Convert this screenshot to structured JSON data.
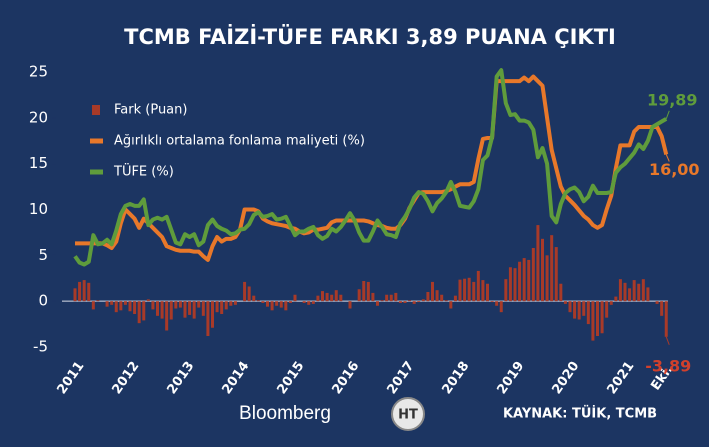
{
  "chart_data": {
    "type": "combo",
    "title": "TCMB FAİZİ-TÜFE FARKI 3,89 PUANA ÇIKTI",
    "source": "KAYNAK: TÜİK, TCMB",
    "footer_logos": [
      "Bloomberg",
      "HT"
    ],
    "legend": "upper left",
    "ylim": [
      -5,
      25
    ],
    "yticks": [
      -5,
      0,
      5,
      10,
      15,
      20,
      25
    ],
    "categories": [
      "2011",
      null,
      null,
      null,
      null,
      null,
      null,
      null,
      null,
      null,
      null,
      null,
      "2012",
      null,
      null,
      null,
      null,
      null,
      null,
      null,
      null,
      null,
      null,
      null,
      "2013",
      null,
      null,
      null,
      null,
      null,
      null,
      null,
      null,
      null,
      null,
      null,
      "2014",
      null,
      null,
      null,
      null,
      null,
      null,
      null,
      null,
      null,
      null,
      null,
      "2015",
      null,
      null,
      null,
      null,
      null,
      null,
      null,
      null,
      null,
      null,
      null,
      "2016",
      null,
      null,
      null,
      null,
      null,
      null,
      null,
      null,
      null,
      null,
      null,
      "2017",
      null,
      null,
      null,
      null,
      null,
      null,
      null,
      null,
      null,
      null,
      null,
      "2018",
      null,
      null,
      null,
      null,
      null,
      null,
      null,
      null,
      null,
      null,
      null,
      "2019",
      null,
      null,
      null,
      null,
      null,
      null,
      null,
      null,
      null,
      null,
      null,
      "2020",
      null,
      null,
      null,
      null,
      null,
      null,
      null,
      null,
      null,
      null,
      null,
      "2021",
      null,
      null,
      null,
      null,
      null,
      null,
      null,
      null,
      "Eki."
    ],
    "series": [
      {
        "name": "Fark (Puan)",
        "type": "bar",
        "color": "#a83a28",
        "values": [
          1.4,
          2.1,
          2.3,
          2.0,
          -0.9,
          0.1,
          0.0,
          -0.6,
          -0.4,
          -1.2,
          -1.0,
          -0.4,
          -1.1,
          -1.4,
          -2.4,
          -2.1,
          0.2,
          -0.9,
          -1.6,
          -1.9,
          -3.2,
          -2.0,
          -0.8,
          -0.7,
          -1.8,
          -1.5,
          -1.9,
          -0.7,
          -1.6,
          -3.8,
          -2.9,
          -1.2,
          -1.4,
          -0.9,
          -0.5,
          -0.4,
          0.0,
          2.1,
          1.6,
          0.6,
          0.1,
          -0.2,
          -0.6,
          -1.0,
          -0.5,
          -0.7,
          -1.0,
          -0.2,
          0.7,
          0.0,
          -0.2,
          -0.4,
          -0.3,
          0.6,
          1.1,
          0.9,
          0.7,
          1.2,
          0.7,
          0.0,
          -0.8,
          0.0,
          1.3,
          2.2,
          2.1,
          0.9,
          -0.5,
          0.1,
          0.7,
          0.7,
          0.9,
          -0.2,
          -0.2,
          0.1,
          -0.3,
          -0.1,
          0.2,
          1.0,
          2.1,
          1.2,
          0.7,
          0.1,
          -0.8,
          0.6,
          2.35,
          2.45,
          2.55,
          2.1,
          3.3,
          2.3,
          1.9,
          -0.1,
          -0.5,
          -1.2,
          2.4,
          3.7,
          3.6,
          4.3,
          4.7,
          4.5,
          5.8,
          8.3,
          6.8,
          5.0,
          7.2,
          5.9,
          1.9,
          -0.3,
          -1.2,
          -1.9,
          -2.0,
          -1.6,
          -2.5,
          -4.3,
          -3.8,
          -3.5,
          -1.8,
          -0.4,
          0.5,
          2.4,
          2.0,
          1.4,
          2.3,
          1.9,
          2.4,
          1.5,
          0.0,
          -0.3,
          -1.6,
          -3.89
        ],
        "value_labels": [
          null,
          null,
          null,
          null,
          null,
          null,
          null,
          null,
          null,
          null,
          null,
          null,
          null,
          null,
          null,
          null,
          null,
          null,
          null,
          null,
          null,
          null,
          null,
          null,
          null,
          null,
          null,
          null,
          null,
          null,
          null,
          null,
          null,
          null,
          null,
          null,
          null,
          null,
          null,
          null,
          null,
          null,
          null,
          null,
          null,
          null,
          null,
          null,
          null,
          null,
          null,
          null,
          null,
          null,
          null,
          null,
          null,
          null,
          null,
          null,
          null,
          null,
          null,
          null,
          null,
          null,
          null,
          null,
          null,
          null,
          null,
          null,
          null,
          null,
          null,
          null,
          null,
          null,
          null,
          null,
          null,
          null,
          null,
          null,
          null,
          null,
          null,
          null,
          null,
          null,
          null,
          null,
          null,
          null,
          null,
          null,
          null,
          null,
          null,
          null,
          null,
          null,
          null,
          null,
          null,
          null,
          null,
          null,
          null,
          null,
          null,
          null,
          null,
          null,
          null,
          null,
          null,
          null,
          null,
          null,
          null,
          null,
          null,
          null,
          null,
          null,
          null,
          null,
          null,
          "-3,89"
        ]
      },
      {
        "name": "Ağırlıklı ortalama fonlama maliyeti (%)",
        "type": "line",
        "color": "#e8782a",
        "values": [
          6.3,
          6.3,
          6.3,
          6.3,
          6.3,
          6.3,
          6.3,
          6.1,
          5.8,
          6.5,
          8.5,
          10.0,
          9.5,
          9.0,
          8.0,
          9.0,
          8.5,
          8.0,
          7.5,
          7.0,
          6.0,
          5.8,
          5.6,
          5.5,
          5.5,
          5.5,
          5.4,
          5.4,
          4.9,
          4.5,
          6.0,
          7.0,
          6.5,
          6.8,
          6.8,
          7.0,
          7.8,
          10.0,
          10.0,
          10.0,
          9.8,
          9.0,
          8.7,
          8.5,
          8.4,
          8.3,
          8.2,
          8.0,
          7.9,
          7.6,
          7.4,
          7.5,
          7.8,
          7.8,
          7.9,
          8.0,
          8.6,
          8.8,
          8.8,
          8.8,
          8.8,
          8.8,
          8.8,
          8.8,
          8.7,
          8.5,
          8.3,
          8.2,
          8.0,
          7.9,
          7.9,
          8.3,
          9.0,
          10.2,
          11.0,
          11.8,
          11.9,
          11.9,
          11.9,
          11.9,
          11.9,
          12.0,
          12.2,
          12.5,
          12.75,
          12.75,
          12.75,
          13.0,
          15.5,
          17.7,
          17.8,
          17.8,
          24.0,
          24.0,
          24.0,
          24.0,
          24.0,
          24.0,
          24.4,
          24.0,
          24.5,
          24.0,
          23.5,
          20.0,
          16.5,
          14.5,
          12.5,
          11.5,
          11.0,
          10.5,
          9.9,
          9.3,
          8.9,
          8.3,
          8.0,
          8.3,
          10.0,
          11.5,
          14.5,
          17.0,
          17.0,
          17.0,
          18.5,
          19.0,
          19.0,
          19.0,
          19.0,
          19.0,
          18.0,
          16.0
        ],
        "value_labels": [
          null,
          null,
          null,
          null,
          null,
          null,
          null,
          null,
          null,
          null,
          null,
          null,
          null,
          null,
          null,
          null,
          null,
          null,
          null,
          null,
          null,
          null,
          null,
          null,
          null,
          null,
          null,
          null,
          null,
          null,
          null,
          null,
          null,
          null,
          null,
          null,
          null,
          null,
          null,
          null,
          null,
          null,
          null,
          null,
          null,
          null,
          null,
          null,
          null,
          null,
          null,
          null,
          null,
          null,
          null,
          null,
          null,
          null,
          null,
          null,
          null,
          null,
          null,
          null,
          null,
          null,
          null,
          null,
          null,
          null,
          null,
          null,
          null,
          null,
          null,
          null,
          null,
          null,
          null,
          null,
          null,
          null,
          null,
          null,
          null,
          null,
          null,
          null,
          null,
          null,
          null,
          null,
          null,
          null,
          null,
          null,
          null,
          null,
          null,
          null,
          null,
          null,
          null,
          null,
          null,
          null,
          null,
          null,
          null,
          null,
          null,
          null,
          null,
          null,
          null,
          null,
          null,
          null,
          null,
          null,
          null,
          null,
          null,
          null,
          null,
          null,
          null,
          null,
          null,
          "16,00"
        ]
      },
      {
        "name": "TÜFE (%)",
        "type": "line",
        "color": "#5f9c3c",
        "values": [
          4.9,
          4.2,
          4.0,
          4.3,
          7.2,
          6.2,
          6.3,
          6.7,
          6.2,
          7.7,
          9.5,
          10.4,
          10.6,
          10.4,
          10.4,
          11.1,
          8.3,
          8.9,
          9.1,
          8.9,
          9.2,
          7.8,
          6.4,
          6.2,
          7.3,
          7.0,
          7.3,
          6.1,
          6.5,
          8.3,
          8.9,
          8.2,
          7.9,
          7.7,
          7.3,
          7.4,
          7.8,
          7.9,
          8.4,
          9.4,
          9.7,
          9.2,
          9.3,
          9.5,
          8.9,
          9.0,
          9.2,
          8.2,
          7.2,
          7.6,
          7.6,
          7.9,
          8.1,
          7.2,
          6.8,
          7.1,
          7.9,
          7.6,
          8.1,
          8.8,
          9.6,
          8.8,
          7.5,
          6.6,
          6.6,
          7.6,
          8.8,
          8.1,
          7.3,
          7.2,
          7.0,
          8.5,
          9.2,
          10.1,
          11.3,
          11.9,
          11.7,
          10.9,
          9.8,
          10.7,
          11.2,
          11.9,
          13.0,
          11.9,
          10.4,
          10.3,
          10.2,
          10.9,
          12.2,
          15.4,
          15.9,
          17.9,
          24.5,
          25.2,
          21.6,
          20.3,
          20.4,
          19.7,
          19.7,
          19.5,
          18.7,
          15.7,
          16.7,
          15.0,
          9.3,
          8.6,
          10.6,
          11.8,
          12.2,
          12.4,
          11.9,
          10.9,
          11.4,
          12.6,
          11.8,
          11.8,
          11.8,
          11.9,
          14.0,
          14.6,
          15.0,
          15.6,
          16.2,
          17.1,
          16.6,
          17.5,
          19.0,
          19.3,
          19.6,
          19.89
        ],
        "value_labels": [
          null,
          null,
          null,
          null,
          null,
          null,
          null,
          null,
          null,
          null,
          null,
          null,
          null,
          null,
          null,
          null,
          null,
          null,
          null,
          null,
          null,
          null,
          null,
          null,
          null,
          null,
          null,
          null,
          null,
          null,
          null,
          null,
          null,
          null,
          null,
          null,
          null,
          null,
          null,
          null,
          null,
          null,
          null,
          null,
          null,
          null,
          null,
          null,
          null,
          null,
          null,
          null,
          null,
          null,
          null,
          null,
          null,
          null,
          null,
          null,
          null,
          null,
          null,
          null,
          null,
          null,
          null,
          null,
          null,
          null,
          null,
          null,
          null,
          null,
          null,
          null,
          null,
          null,
          null,
          null,
          null,
          null,
          null,
          null,
          null,
          null,
          null,
          null,
          null,
          null,
          null,
          null,
          null,
          null,
          null,
          null,
          null,
          null,
          null,
          null,
          null,
          null,
          null,
          null,
          null,
          null,
          null,
          null,
          null,
          null,
          null,
          null,
          null,
          null,
          null,
          null,
          null,
          null,
          null,
          null,
          null,
          null,
          null,
          null,
          null,
          null,
          null,
          null,
          null,
          "19,89"
        ]
      }
    ]
  }
}
